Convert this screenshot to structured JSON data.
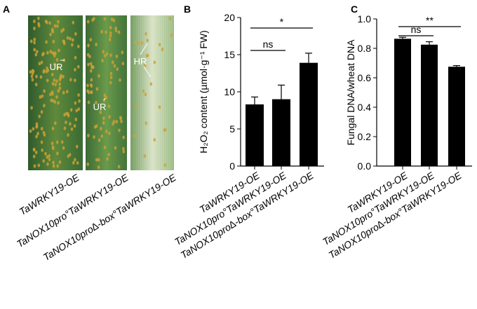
{
  "panel_a": {
    "label": "A",
    "annotations": [
      "UR",
      "UR",
      "HR"
    ],
    "categories": [
      "TaWRKY19-OE",
      "TaNOX10pro°TaWRKY19-OE",
      "TaNOX10pro∆-box°TaWRKY19-OE"
    ]
  },
  "chart_data": [
    {
      "type": "bar",
      "label": "B",
      "y_label": "H₂O₂ content (µmol·g⁻¹ FW)",
      "categories": [
        "TaWRKY19-OE",
        "TaNOX10pro°TaWRKY19-OE",
        "TaNOX10pro∆-box°TaWRKY19-OE"
      ],
      "values": [
        8.3,
        9.0,
        13.9
      ],
      "errors": [
        1.0,
        1.9,
        1.3
      ],
      "color": "#000000",
      "ylim": [
        0,
        20
      ],
      "yticks": [
        0,
        5,
        10,
        15,
        20
      ],
      "significance": [
        "ns",
        "*"
      ]
    },
    {
      "type": "bar",
      "label": "C",
      "y_label": "Fungal DNA/wheat DNA",
      "categories": [
        "TaWRKY19-OE",
        "TaNOX10pro°TaWRKY19-OE",
        "TaNOX10pro∆-box°TaWRKY19-OE"
      ],
      "values": [
        0.865,
        0.825,
        0.675
      ],
      "errors": [
        0.01,
        0.02,
        0.008
      ],
      "color": "#000000",
      "ylim": [
        0,
        1.0
      ],
      "yticks": [
        {
          "value": 0,
          "label": "0.0"
        },
        0.2,
        0.4,
        0.6,
        0.8,
        {
          "value": 1.0,
          "label": "1.0"
        }
      ],
      "significance": [
        "ns",
        "**"
      ]
    }
  ]
}
